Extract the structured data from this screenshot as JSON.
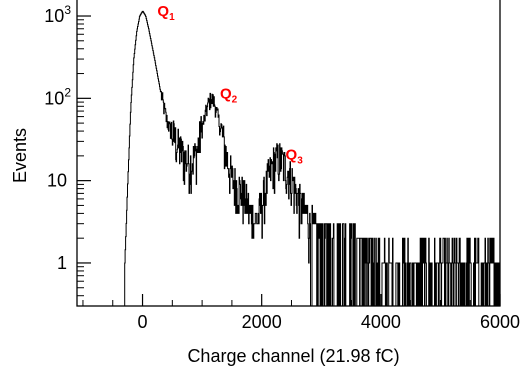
{
  "chart_data": {
    "type": "line",
    "title": "",
    "xlabel": "Charge channel (21.98 fC)",
    "ylabel": "Events",
    "x_scale": "linear",
    "y_scale": "log",
    "xlim": [
      -1100,
      6000
    ],
    "ylim": [
      0.3,
      1800
    ],
    "x_ticks": [
      {
        "value": 0,
        "label": "0"
      },
      {
        "value": 2000,
        "label": "2000"
      },
      {
        "value": 4000,
        "label": "4000"
      },
      {
        "value": 6000,
        "label": "6000"
      }
    ],
    "y_ticks": [
      {
        "value": 1,
        "label": "1",
        "sup": ""
      },
      {
        "value": 10,
        "label": "10",
        "sup": ""
      },
      {
        "value": 100,
        "label": "10",
        "sup": "2"
      },
      {
        "value": 1000,
        "label": "10",
        "sup": "3"
      }
    ],
    "grid": false,
    "series": [
      {
        "color": "#000000",
        "x": [
          -300,
          -250,
          -200,
          -150,
          -100,
          -50,
          0,
          50,
          100,
          200,
          300,
          400,
          500,
          600,
          700,
          800,
          900,
          1000,
          1100,
          1150,
          1200,
          1300,
          1400,
          1500,
          1600,
          1700,
          1800,
          1900,
          2000,
          2100,
          2200,
          2300,
          2400,
          2500,
          2600,
          2800,
          3000,
          3500,
          4000,
          4500,
          5000,
          5500,
          6000
        ],
        "y": [
          1,
          10,
          80,
          300,
          650,
          1000,
          1150,
          1000,
          700,
          300,
          120,
          55,
          35,
          25,
          18,
          16,
          20,
          45,
          85,
          100,
          90,
          45,
          20,
          10,
          8,
          6,
          4,
          3,
          5,
          10,
          16,
          18,
          14,
          10,
          6,
          3,
          2,
          2,
          1,
          1,
          1,
          1,
          1
        ]
      }
    ],
    "annotations": [
      {
        "text": "Q",
        "sub": "1",
        "x": 250,
        "y": 1000,
        "color": "#ff0000"
      },
      {
        "text": "Q",
        "sub": "2",
        "x": 1300,
        "y": 100,
        "color": "#ff0000"
      },
      {
        "text": "Q",
        "sub": "3",
        "x": 2400,
        "y": 18,
        "color": "#ff0000"
      }
    ]
  }
}
